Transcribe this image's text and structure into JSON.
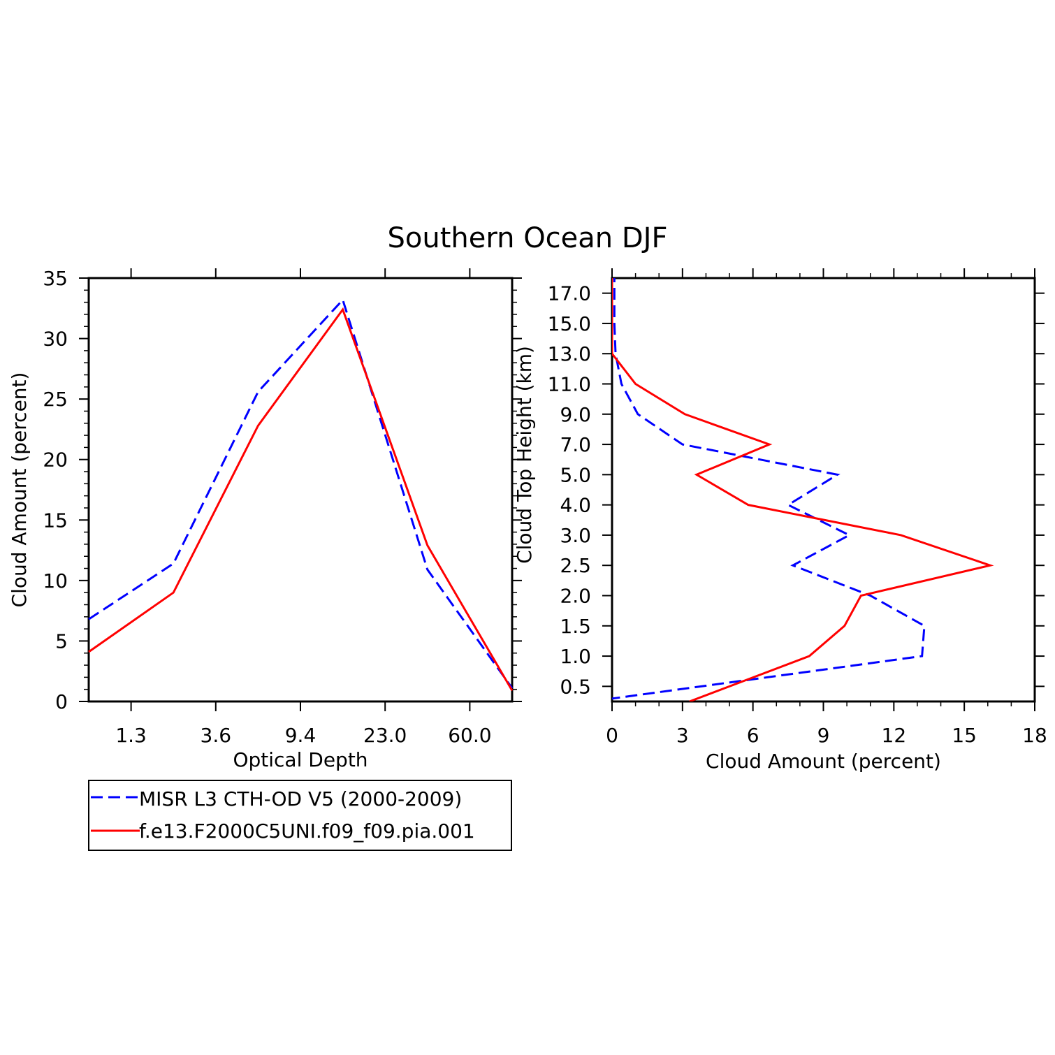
{
  "title": "Southern Ocean DJF",
  "colors": {
    "obs": "#0000ff",
    "model": "#ff0000",
    "axis": "#000000"
  },
  "legend": {
    "entries": [
      {
        "label": "MISR L3 CTH-OD V5 (2000-2009)",
        "color": "#0000ff",
        "style": "dashed"
      },
      {
        "label": "f.e13.F2000C5UNI.f09_f09.pia.001",
        "color": "#ff0000",
        "style": "solid"
      }
    ]
  },
  "chart_data": [
    {
      "type": "line",
      "xlabel": "Optical Depth",
      "ylabel": "Cloud Amount (percent)",
      "xlim": [
        0,
        5
      ],
      "ylim": [
        0,
        35
      ],
      "categories": [
        "1.3",
        "3.6",
        "9.4",
        "23.0",
        "60.0"
      ],
      "x": [
        0,
        1,
        2,
        3,
        4,
        5
      ],
      "yticks": [
        0,
        5,
        10,
        15,
        20,
        25,
        30,
        35
      ],
      "series": [
        {
          "name": "MISR L3 CTH-OD V5 (2000-2009)",
          "values": [
            6.8,
            11.4,
            25.6,
            33.2,
            10.9,
            1.1
          ]
        },
        {
          "name": "f.e13.F2000C5UNI.f09_f09.pia.001",
          "values": [
            4.1,
            9.0,
            22.8,
            32.4,
            12.9,
            0.9
          ]
        }
      ]
    },
    {
      "type": "line",
      "xlabel": "Cloud Amount (percent)",
      "ylabel": "Cloud Top Height (km)",
      "xlim": [
        0,
        18
      ],
      "xticks": [
        "0",
        "3",
        "6",
        "9",
        "12",
        "15",
        "18"
      ],
      "height_levels": [
        "0.5",
        "1.0",
        "1.5",
        "2.0",
        "2.5",
        "3.0",
        "4.0",
        "5.0",
        "7.0",
        "9.0",
        "11.0",
        "13.0",
        "15.0",
        "17.0"
      ],
      "series": [
        {
          "name": "MISR L3 CTH-OD V5 (2000-2009)",
          "values": [
            3.8,
            13.2,
            13.3,
            11.0,
            7.7,
            10.1,
            7.5,
            9.6,
            3.0,
            1.1,
            0.4,
            0.15,
            0.1,
            0.1
          ]
        },
        {
          "name": "f.e13.F2000C5UNI.f09_f09.pia.001",
          "values": [
            5.0,
            8.4,
            9.9,
            10.6,
            16.1,
            12.3,
            5.8,
            3.6,
            6.7,
            3.1,
            1.0,
            0.0,
            0.0,
            0.0
          ]
        }
      ]
    }
  ]
}
